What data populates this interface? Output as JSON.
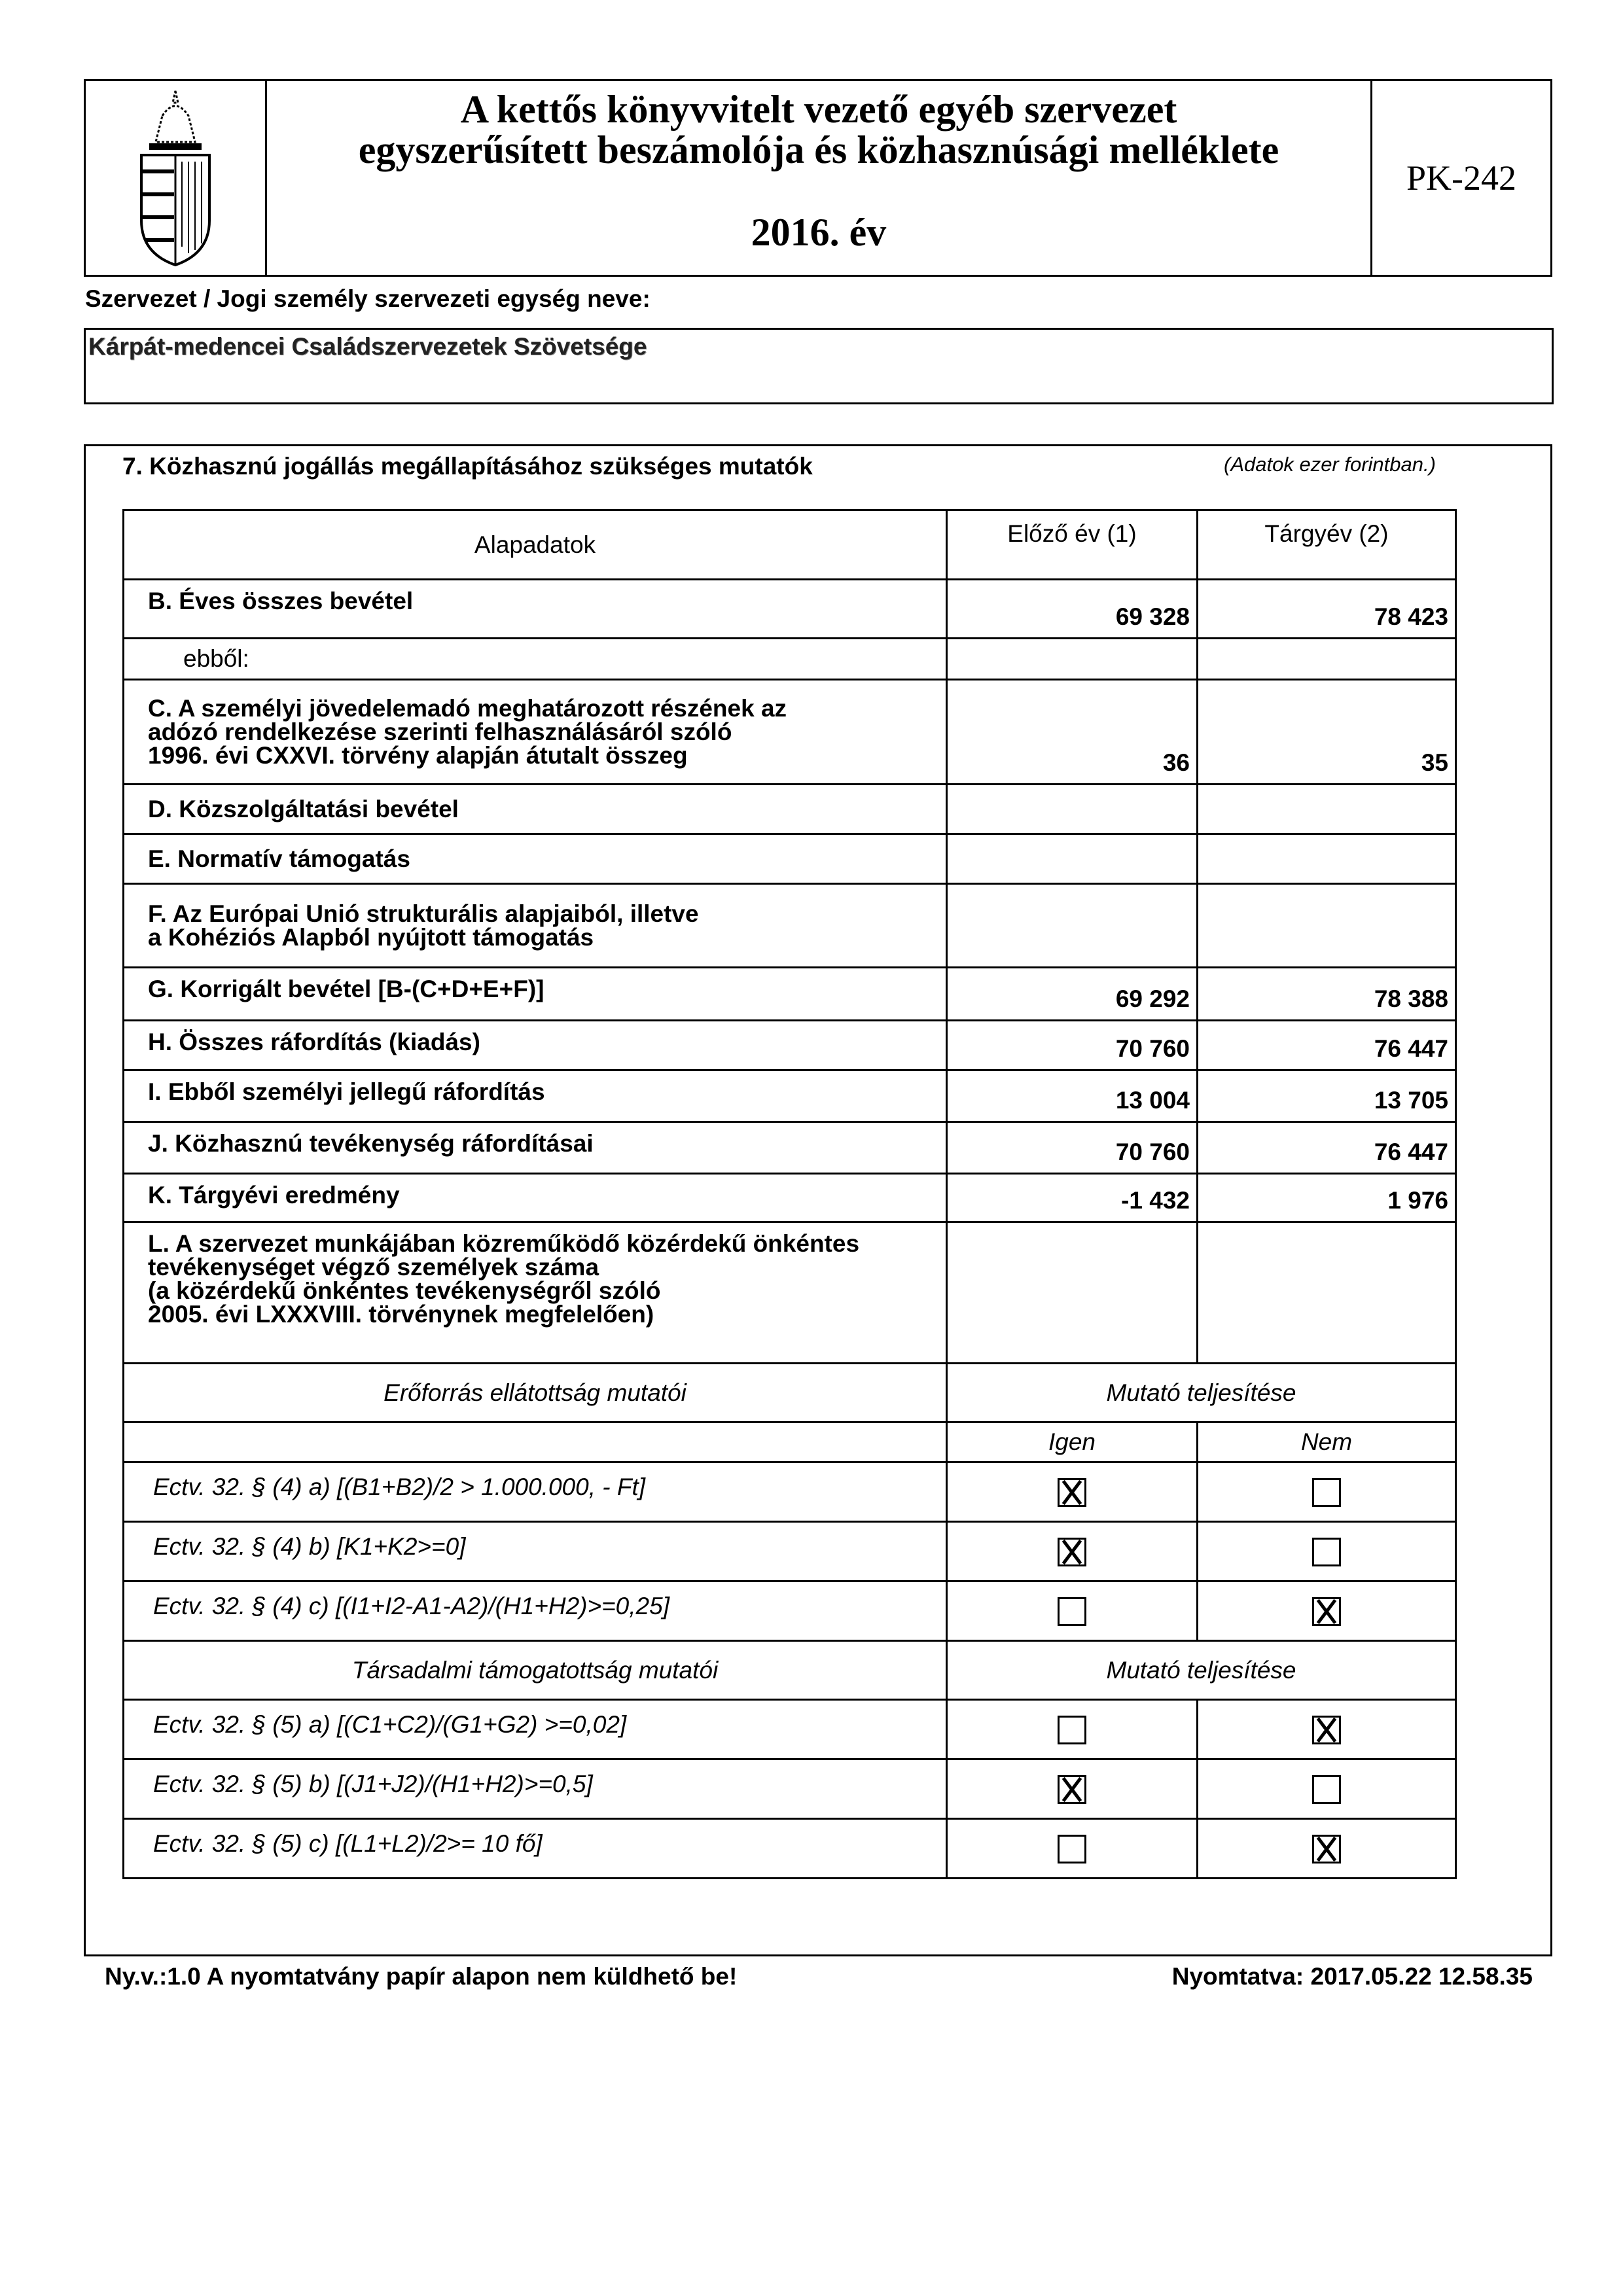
{
  "header": {
    "title_line1": "A kettős könyvvitelt vezető egyéb szervezet",
    "title_line2": "egyszerűsített beszámolója és közhasznúsági melléklete",
    "year": "2016. év",
    "form_code": "PK-242",
    "logo_icon": "hungarian-coat-of-arms-icon"
  },
  "organization": {
    "label": "Szervezet / Jogi személy szervezeti egység neve:",
    "name": "Kárpát-medencei Családszervezetek Szövetsége"
  },
  "section": {
    "title": "7. Közhasznú jogállás megállapításához szükséges mutatók",
    "unit_note": "(Adatok ezer forintban.)",
    "columns": [
      "Alapadatok",
      "Előző év (1)",
      "Tárgyév (2)"
    ],
    "rows": [
      {
        "label": "B. Éves összes bevétel",
        "prev": "69 328",
        "curr": "78 423"
      },
      {
        "label": "ebből:",
        "prev": "",
        "curr": "",
        "plain": true
      },
      {
        "label": "C. A személyi jövedelemadó meghatározott részének az\nadózó rendelkezése szerinti felhasználásáról szóló\n1996. évi CXXVI. törvény alapján átutalt összeg",
        "prev": "36",
        "curr": "35"
      },
      {
        "label": "D. Közszolgáltatási bevétel",
        "prev": "",
        "curr": ""
      },
      {
        "label": "E. Normatív támogatás",
        "prev": "",
        "curr": ""
      },
      {
        "label": "F. Az Európai Unió strukturális alapjaiból, illetve\na Kohéziós Alapból nyújtott támogatás",
        "prev": "",
        "curr": ""
      },
      {
        "label": "G. Korrigált bevétel [B-(C+D+E+F)]",
        "prev": "69 292",
        "curr": "78 388"
      },
      {
        "label": "H. Összes ráfordítás (kiadás)",
        "prev": "70 760",
        "curr": "76 447"
      },
      {
        "label": "I. Ebből személyi jellegű ráfordítás",
        "prev": "13 004",
        "curr": "13 705"
      },
      {
        "label": "J. Közhasznú tevékenység ráfordításai",
        "prev": "70 760",
        "curr": "76 447"
      },
      {
        "label": "K. Tárgyévi eredmény",
        "prev": "-1 432",
        "curr": "1 976"
      },
      {
        "label": "L. A szervezet munkájában közreműködő közérdekű önkéntes\ntevékenységet végző személyek száma\n(a közérdekű önkéntes tevékenységről szóló\n2005. évi LXXXVIII. törvénynek megfelelően)",
        "prev": "",
        "curr": ""
      }
    ],
    "resource_group": {
      "title": "Erőforrás ellátottság mutatói",
      "status_header": "Mutató teljesítése",
      "yes_label": "Igen",
      "no_label": "Nem",
      "criteria": [
        {
          "label": "Ectv. 32. § (4) a) [(B1+B2)/2 > 1.000.000, - Ft]",
          "yes": true,
          "no": false
        },
        {
          "label": "Ectv. 32. § (4) b) [K1+K2>=0]",
          "yes": true,
          "no": false
        },
        {
          "label": "Ectv. 32. § (4) c) [(I1+I2-A1-A2)/(H1+H2)>=0,25]",
          "yes": false,
          "no": true
        }
      ]
    },
    "social_group": {
      "title": "Társadalmi támogatottság mutatói",
      "status_header": "Mutató teljesítése",
      "criteria": [
        {
          "label": "Ectv. 32. § (5) a) [(C1+C2)/(G1+G2) >=0,02]",
          "yes": false,
          "no": true
        },
        {
          "label": "Ectv. 32. § (5) b) [(J1+J2)/(H1+H2)>=0,5]",
          "yes": true,
          "no": false
        },
        {
          "label": "Ectv. 32. § (5) c) [(L1+L2)/2>= 10 fő]",
          "yes": false,
          "no": true
        }
      ]
    }
  },
  "footer": {
    "left": "Ny.v.:1.0 A nyomtatvány papír alapon nem küldhető be!",
    "right": "Nyomtatva: 2017.05.22 12.58.35"
  }
}
